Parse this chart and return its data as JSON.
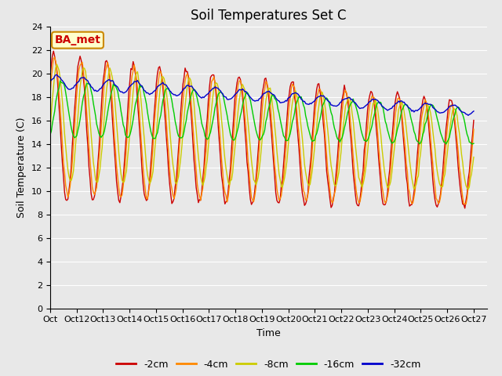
{
  "title": "Soil Temperatures Set C",
  "xlabel": "Time",
  "ylabel": "Soil Temperature (C)",
  "annotation": "BA_met",
  "ylim": [
    0,
    24
  ],
  "yticks": [
    0,
    2,
    4,
    6,
    8,
    10,
    12,
    14,
    16,
    18,
    20,
    22,
    24
  ],
  "xtick_labels_first": "Oct",
  "xtick_labels": [
    "Oct 12",
    "Oct 13",
    "Oct 14",
    "Oct 15",
    "Oct 16",
    "Oct 17",
    "Oct 18",
    "Oct 19",
    "Oct 20",
    "Oct 21",
    "Oct 22",
    "Oct 23",
    "Oct 24",
    "Oct 25",
    "Oct 26",
    "Oct 27"
  ],
  "series_colors": [
    "#cc0000",
    "#ff8800",
    "#cccc00",
    "#00cc00",
    "#0000cc"
  ],
  "series_labels": [
    "-2cm",
    "-4cm",
    "-8cm",
    "-16cm",
    "-32cm"
  ],
  "fig_width": 6.4,
  "fig_height": 4.8,
  "dpi": 100,
  "bg_color": "#e8e8e8",
  "title_fontsize": 12,
  "axis_fontsize": 9,
  "tick_fontsize": 8,
  "legend_fontsize": 9,
  "annotation_fontsize": 10,
  "annotation_text_color": "#cc0000",
  "annotation_bg_color": "#ffffcc",
  "annotation_edge_color": "#cc8800",
  "grid_color": "white",
  "grid_linewidth": 0.8,
  "line_linewidth": 1.0
}
